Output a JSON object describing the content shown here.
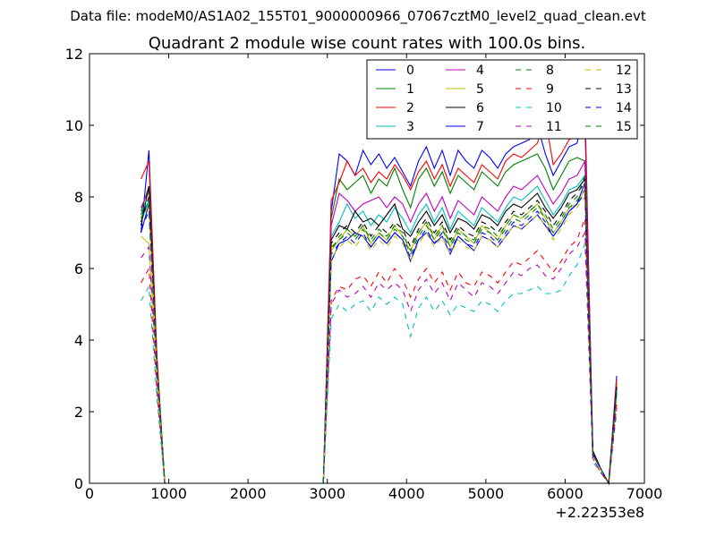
{
  "figure": {
    "suptitle": "Data file: modeM0/AS1A02_155T01_9000000966_07067cztM0_level2_quad_clean.evt"
  },
  "chart_data": {
    "type": "line",
    "title": "Quadrant 2 module wise count rates with 100.0s bins.",
    "xlabel": "",
    "ylabel": "",
    "xlim": [
      0,
      7000
    ],
    "ylim": [
      0,
      12
    ],
    "x_offset_label": "+2.22353e8",
    "x_ticks": [
      0,
      1000,
      2000,
      3000,
      4000,
      5000,
      6000,
      7000
    ],
    "x_tick_labels": [
      "0",
      "1000",
      "2000",
      "3000",
      "4000",
      "5000",
      "6000",
      "7000"
    ],
    "y_ticks": [
      0,
      2,
      4,
      6,
      8,
      10,
      12
    ],
    "y_tick_labels": [
      "0",
      "2",
      "4",
      "6",
      "8",
      "10",
      "12"
    ],
    "grid": false,
    "legend": {
      "location": "top-right",
      "columns": 4
    },
    "x": [
      650,
      750,
      850,
      950,
      1050,
      2950,
      3050,
      3150,
      3250,
      3350,
      3450,
      3550,
      3650,
      3750,
      3850,
      3950,
      4050,
      4150,
      4250,
      4350,
      4450,
      4550,
      4650,
      4750,
      4850,
      4950,
      5050,
      5150,
      5250,
      5350,
      5450,
      5550,
      5650,
      5750,
      5850,
      5950,
      6050,
      6150,
      6250,
      6350,
      6450,
      6550,
      6650
    ],
    "series": [
      {
        "name": "0",
        "color": "#0000ff",
        "dash": "solid",
        "values": [
          7.0,
          9.3,
          3.5,
          0,
          0,
          0,
          7.6,
          9.2,
          9.0,
          8.6,
          9.3,
          8.9,
          9.2,
          8.8,
          9.1,
          8.7,
          8.3,
          9.0,
          9.4,
          8.8,
          9.3,
          8.6,
          9.3,
          9.0,
          8.8,
          9.3,
          9.1,
          8.8,
          9.2,
          9.4,
          9.5,
          9.6,
          10.0,
          9.2,
          8.6,
          9.0,
          9.4,
          9.5,
          10.5,
          0.9,
          0.4,
          0,
          3.0
        ]
      },
      {
        "name": "1",
        "color": "#008000",
        "dash": "solid",
        "values": [
          7.6,
          8.3,
          3.4,
          0,
          0,
          0,
          7.4,
          8.5,
          8.2,
          8.4,
          8.6,
          8.1,
          8.5,
          8.3,
          8.8,
          8.2,
          7.7,
          8.5,
          8.8,
          8.3,
          8.7,
          8.1,
          8.6,
          8.4,
          8.2,
          8.7,
          8.5,
          8.3,
          8.7,
          8.9,
          9.0,
          9.1,
          9.2,
          8.8,
          8.2,
          8.6,
          9.0,
          9.1,
          9.0,
          0.9,
          0.4,
          0,
          2.8
        ]
      },
      {
        "name": "2",
        "color": "#ff0000",
        "dash": "solid",
        "values": [
          8.5,
          9.0,
          3.6,
          0,
          0,
          0,
          7.9,
          8.4,
          9.0,
          8.6,
          8.8,
          8.4,
          8.7,
          8.5,
          8.9,
          8.6,
          8.2,
          8.7,
          9.0,
          8.5,
          8.9,
          8.3,
          8.8,
          8.6,
          8.4,
          8.9,
          8.7,
          8.5,
          9.0,
          9.2,
          9.1,
          9.3,
          9.5,
          10.2,
          8.9,
          9.2,
          9.6,
          9.7,
          10.0,
          0.9,
          0.4,
          0,
          2.9
        ]
      },
      {
        "name": "3",
        "color": "#00bfbf",
        "dash": "solid",
        "values": [
          7.3,
          7.9,
          3.2,
          0,
          0,
          0,
          6.9,
          7.3,
          7.8,
          7.4,
          7.6,
          7.2,
          7.5,
          7.3,
          7.7,
          7.4,
          7.0,
          7.5,
          7.8,
          7.3,
          7.7,
          7.1,
          7.6,
          7.4,
          7.2,
          7.7,
          7.5,
          7.3,
          7.7,
          8.0,
          7.9,
          8.1,
          8.3,
          7.9,
          7.5,
          7.8,
          8.2,
          8.3,
          8.6,
          0.8,
          0.4,
          0,
          2.6
        ]
      },
      {
        "name": "4",
        "color": "#bf00bf",
        "dash": "solid",
        "values": [
          7.7,
          8.2,
          3.3,
          0,
          0,
          0,
          7.2,
          8.1,
          7.9,
          7.6,
          7.8,
          7.9,
          8.0,
          7.7,
          8.0,
          7.8,
          7.3,
          7.8,
          8.1,
          7.6,
          8.0,
          7.4,
          7.9,
          7.7,
          7.5,
          8.0,
          7.8,
          7.6,
          8.0,
          8.3,
          8.2,
          8.4,
          8.6,
          8.2,
          7.8,
          8.1,
          8.5,
          8.6,
          9.0,
          0.8,
          0.4,
          0,
          2.7
        ]
      },
      {
        "name": "5",
        "color": "#bfbf00",
        "dash": "solid",
        "values": [
          6.9,
          6.7,
          3.0,
          0,
          0,
          0,
          6.5,
          6.8,
          7.1,
          6.9,
          7.2,
          6.7,
          7.0,
          6.8,
          7.2,
          6.9,
          6.5,
          7.0,
          7.3,
          6.8,
          7.2,
          6.6,
          7.1,
          6.9,
          6.7,
          7.2,
          7.0,
          6.8,
          7.2,
          7.5,
          7.4,
          7.6,
          7.8,
          7.4,
          7.0,
          7.3,
          7.7,
          7.8,
          8.2,
          0.8,
          0.4,
          0,
          2.5
        ]
      },
      {
        "name": "6",
        "color": "#000000",
        "dash": "solid",
        "values": [
          7.2,
          8.3,
          3.3,
          0,
          0,
          0,
          6.8,
          7.2,
          7.1,
          7.6,
          7.3,
          7.4,
          7.2,
          7.5,
          7.8,
          7.1,
          6.9,
          7.3,
          7.6,
          7.2,
          7.5,
          7.0,
          7.4,
          7.3,
          7.1,
          7.5,
          7.4,
          7.2,
          7.6,
          7.8,
          7.7,
          7.9,
          8.1,
          7.7,
          7.4,
          7.7,
          8.1,
          8.2,
          8.5,
          0.9,
          0.4,
          0,
          2.7
        ]
      },
      {
        "name": "7",
        "color": "#0000ff",
        "dash": "solid",
        "values": [
          7.0,
          7.8,
          3.2,
          0,
          0,
          0,
          6.2,
          6.7,
          6.8,
          7.0,
          6.9,
          6.6,
          6.9,
          6.7,
          7.0,
          6.8,
          6.2,
          6.8,
          7.0,
          6.7,
          6.9,
          6.4,
          6.9,
          6.7,
          6.5,
          6.9,
          6.8,
          6.6,
          6.9,
          7.2,
          7.1,
          7.3,
          7.5,
          7.2,
          6.9,
          7.2,
          7.6,
          7.8,
          8.4,
          0.8,
          0.4,
          0,
          2.6
        ]
      },
      {
        "name": "8",
        "color": "#008000",
        "dash": "dashed",
        "values": [
          7.5,
          8.1,
          3.3,
          0,
          0,
          0,
          6.6,
          6.8,
          7.0,
          6.8,
          7.1,
          6.7,
          7.0,
          6.8,
          7.1,
          6.9,
          6.4,
          6.9,
          7.2,
          6.8,
          7.1,
          6.6,
          7.0,
          6.8,
          6.7,
          7.1,
          7.0,
          6.8,
          7.1,
          7.4,
          7.3,
          7.5,
          7.7,
          7.4,
          7.0,
          7.3,
          7.7,
          7.9,
          8.2,
          0.8,
          0.4,
          0,
          2.5
        ]
      },
      {
        "name": "9",
        "color": "#ff0000",
        "dash": "dashed",
        "values": [
          5.6,
          6.0,
          2.6,
          0,
          0,
          0,
          5.1,
          5.5,
          5.4,
          5.7,
          5.8,
          5.5,
          5.9,
          5.6,
          6.0,
          5.7,
          5.2,
          5.7,
          6.0,
          5.6,
          5.9,
          5.4,
          5.9,
          5.6,
          5.5,
          5.9,
          5.8,
          5.6,
          5.9,
          6.2,
          6.1,
          6.3,
          6.5,
          6.2,
          5.9,
          6.2,
          6.6,
          6.8,
          7.4,
          0.7,
          0.3,
          0,
          2.2
        ]
      },
      {
        "name": "10",
        "color": "#00bfbf",
        "dash": "dashed",
        "values": [
          5.1,
          5.5,
          2.4,
          0,
          0,
          0,
          4.6,
          5.0,
          4.8,
          5.0,
          5.1,
          4.8,
          5.2,
          5.0,
          5.2,
          5.0,
          4.1,
          4.9,
          5.2,
          4.8,
          5.1,
          4.7,
          5.0,
          4.9,
          4.8,
          5.1,
          5.0,
          4.8,
          5.1,
          5.3,
          5.3,
          5.4,
          5.5,
          5.3,
          5.3,
          5.4,
          5.8,
          6.1,
          6.7,
          0.6,
          0.3,
          0,
          2.0
        ]
      },
      {
        "name": "11",
        "color": "#bf00bf",
        "dash": "dashed",
        "values": [
          6.3,
          6.6,
          2.9,
          0,
          0,
          0,
          5.0,
          5.4,
          5.2,
          5.3,
          5.5,
          5.2,
          5.6,
          5.4,
          5.6,
          5.4,
          4.8,
          5.4,
          5.7,
          5.3,
          5.6,
          5.1,
          5.6,
          5.4,
          5.2,
          5.6,
          5.5,
          5.3,
          5.6,
          5.9,
          5.8,
          6.0,
          6.1,
          5.8,
          5.7,
          6.0,
          6.4,
          6.6,
          7.0,
          0.7,
          0.3,
          0,
          2.1
        ]
      },
      {
        "name": "12",
        "color": "#bfbf00",
        "dash": "dashed",
        "values": [
          7.3,
          7.8,
          3.2,
          0,
          0,
          0,
          6.3,
          6.6,
          6.8,
          6.6,
          6.9,
          6.5,
          6.8,
          6.6,
          6.9,
          6.7,
          6.2,
          6.7,
          7.0,
          6.6,
          6.9,
          6.4,
          6.8,
          6.6,
          6.5,
          6.9,
          6.8,
          6.6,
          6.9,
          7.2,
          7.1,
          7.3,
          7.5,
          7.2,
          6.8,
          7.1,
          7.5,
          7.7,
          8.0,
          0.8,
          0.4,
          0,
          2.5
        ]
      },
      {
        "name": "13",
        "color": "#000000",
        "dash": "dashed",
        "values": [
          7.3,
          8.0,
          3.3,
          0,
          0,
          0,
          6.7,
          7.0,
          7.2,
          7.0,
          7.3,
          6.9,
          7.2,
          7.0,
          7.3,
          7.1,
          6.6,
          7.1,
          7.4,
          7.0,
          7.3,
          6.8,
          7.2,
          7.0,
          6.9,
          7.3,
          7.2,
          7.0,
          7.3,
          7.6,
          7.5,
          7.7,
          7.9,
          7.6,
          7.2,
          7.5,
          7.9,
          8.1,
          8.4,
          0.9,
          0.4,
          0,
          2.7
        ]
      },
      {
        "name": "14",
        "color": "#0000ff",
        "dash": "dashed",
        "values": [
          7.1,
          7.6,
          3.2,
          0,
          0,
          0,
          6.4,
          6.7,
          6.9,
          6.7,
          7.0,
          6.6,
          6.9,
          6.7,
          7.0,
          6.8,
          6.3,
          6.8,
          7.1,
          6.7,
          7.0,
          6.5,
          6.9,
          6.7,
          6.6,
          7.0,
          6.9,
          6.7,
          7.0,
          7.3,
          7.2,
          7.4,
          7.6,
          7.3,
          6.9,
          7.2,
          7.6,
          7.8,
          8.1,
          0.8,
          0.4,
          0,
          2.6
        ]
      },
      {
        "name": "15",
        "color": "#008000",
        "dash": "dashed",
        "values": [
          7.4,
          7.9,
          3.3,
          0,
          0,
          0,
          6.5,
          6.9,
          7.1,
          6.9,
          7.2,
          6.8,
          7.1,
          6.9,
          7.2,
          7.0,
          6.5,
          7.0,
          7.3,
          6.9,
          7.2,
          6.7,
          7.1,
          6.9,
          6.8,
          7.2,
          7.1,
          6.9,
          7.2,
          7.5,
          7.4,
          7.6,
          7.8,
          7.5,
          7.1,
          7.4,
          7.8,
          8.0,
          8.6,
          0.8,
          0.4,
          0,
          2.6
        ]
      }
    ]
  }
}
